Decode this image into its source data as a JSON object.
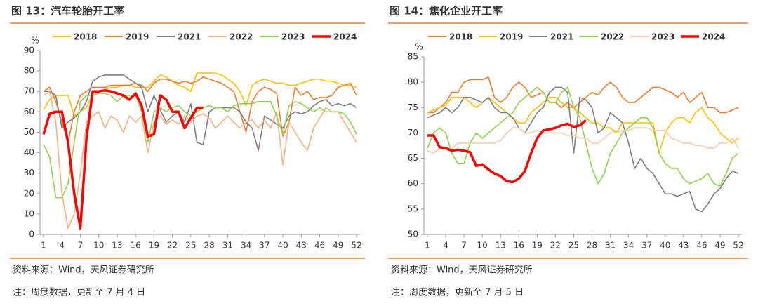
{
  "chart_data": [
    {
      "type": "line",
      "title": "图 13：汽车轮胎开工率",
      "source": "资料来源：Wind，天风证券研究所",
      "note": "注：周度数据，更新至 7 月 4 日",
      "y_unit": "%",
      "x": [
        1,
        2,
        3,
        4,
        5,
        6,
        7,
        8,
        9,
        10,
        11,
        12,
        13,
        14,
        15,
        16,
        17,
        18,
        19,
        20,
        21,
        22,
        23,
        24,
        25,
        26,
        27,
        28,
        29,
        30,
        31,
        32,
        33,
        34,
        35,
        36,
        37,
        38,
        39,
        40,
        41,
        42,
        43,
        44,
        45,
        46,
        47,
        48,
        49,
        50,
        51,
        52
      ],
      "xlim": [
        1,
        52
      ],
      "xticks": [
        1,
        4,
        7,
        10,
        13,
        16,
        19,
        22,
        25,
        28,
        31,
        34,
        37,
        40,
        43,
        46,
        49,
        52
      ],
      "ylim": [
        0,
        90
      ],
      "yticks": [
        0,
        10,
        20,
        30,
        40,
        50,
        60,
        70,
        80,
        90
      ],
      "legend": "top",
      "series": [
        {
          "name": "2018",
          "color": "#FFC000",
          "values": [
            61,
            66,
            68,
            68,
            68,
            58,
            60,
            62,
            69,
            70,
            71,
            72,
            72,
            73,
            73,
            72,
            72,
            72,
            75,
            78,
            77,
            75,
            73,
            72,
            70,
            79,
            79,
            79,
            79,
            78,
            76,
            74,
            70,
            63,
            73,
            75,
            76,
            75,
            74,
            74,
            73,
            73,
            74,
            75,
            76,
            76,
            75,
            75,
            74,
            73,
            73,
            72
          ]
        },
        {
          "name": "2019",
          "color": "#ED7D31",
          "values": [
            70,
            72,
            65,
            55,
            45,
            60,
            68,
            70,
            72,
            72,
            72,
            73,
            73,
            73,
            73,
            74,
            73,
            70,
            74,
            76,
            76,
            75,
            74,
            75,
            74,
            75,
            77,
            76,
            75,
            74,
            72,
            70,
            60,
            50,
            65,
            70,
            72,
            71,
            69,
            48,
            55,
            72,
            68,
            70,
            66,
            67,
            67,
            68,
            72,
            73,
            74,
            68
          ]
        },
        {
          "name": "2021",
          "color": "#7F7F7F",
          "values": [
            70,
            70,
            68,
            52,
            55,
            57,
            60,
            65,
            75,
            77,
            78,
            78,
            78,
            78,
            76,
            74,
            72,
            60,
            68,
            61,
            55,
            58,
            60,
            55,
            64,
            45,
            44,
            60,
            62,
            62,
            62,
            62,
            60,
            55,
            52,
            41,
            58,
            56,
            54,
            52,
            58,
            60,
            59,
            60,
            63,
            65,
            66,
            63,
            64,
            63,
            64,
            62
          ]
        },
        {
          "name": "2022",
          "color": "#F4B183",
          "values": [
            68,
            70,
            55,
            20,
            3,
            10,
            30,
            55,
            58,
            60,
            52,
            58,
            56,
            50,
            58,
            55,
            58,
            40,
            55,
            58,
            54,
            56,
            54,
            58,
            55,
            58,
            59,
            57,
            52,
            55,
            58,
            55,
            52,
            55,
            56,
            52,
            56,
            52,
            60,
            34,
            55,
            50,
            45,
            41,
            52,
            57,
            62,
            60,
            60,
            55,
            50,
            45
          ]
        },
        {
          "name": "2023",
          "color": "#92D050",
          "values": [
            44,
            38,
            18,
            18,
            25,
            45,
            65,
            68,
            68,
            69,
            69,
            68,
            65,
            68,
            68,
            68,
            60,
            45,
            60,
            62,
            60,
            62,
            63,
            60,
            58,
            60,
            62,
            63,
            62,
            62,
            60,
            63,
            64,
            64,
            64,
            65,
            65,
            65,
            58,
            49,
            63,
            65,
            64,
            62,
            60,
            62,
            60,
            60,
            60,
            59,
            55,
            49
          ]
        },
        {
          "name": "2024",
          "color": "#FF0000",
          "values": [
            49,
            59,
            60,
            60,
            45,
            20,
            3,
            47,
            70,
            70,
            70.5,
            70,
            69,
            68,
            66,
            69,
            63,
            48,
            49,
            68,
            66,
            60,
            60,
            52,
            57,
            62,
            62,
            null,
            null,
            null,
            null,
            null,
            null,
            null,
            null,
            null,
            null,
            null,
            null,
            null,
            null,
            null,
            null,
            null,
            null,
            null,
            null,
            null,
            null,
            null,
            null,
            null
          ]
        }
      ]
    },
    {
      "type": "line",
      "title": "图 14：焦化企业开工率",
      "source": "资料来源：Wind，天风证券研究所",
      "note": "注：周度数据，更新至 7 月 5 日",
      "y_unit": "%",
      "x": [
        1,
        2,
        3,
        4,
        5,
        6,
        7,
        8,
        9,
        10,
        11,
        12,
        13,
        14,
        15,
        16,
        17,
        18,
        19,
        20,
        21,
        22,
        23,
        24,
        25,
        26,
        27,
        28,
        29,
        30,
        31,
        32,
        33,
        34,
        35,
        36,
        37,
        38,
        39,
        40,
        41,
        42,
        43,
        44,
        45,
        46,
        47,
        48,
        49,
        50,
        51,
        52
      ],
      "xlim": [
        1,
        52
      ],
      "xticks": [
        1,
        4,
        7,
        10,
        13,
        16,
        19,
        22,
        25,
        28,
        31,
        34,
        37,
        40,
        43,
        46,
        49,
        52
      ],
      "ylim": [
        50,
        85
      ],
      "yticks": [
        50,
        55,
        60,
        65,
        70,
        75,
        80,
        85
      ],
      "legend": "top",
      "series": [
        {
          "name": "2018",
          "color": "#ED7D31",
          "values": [
            74,
            74,
            75,
            76,
            78,
            78,
            80,
            80.5,
            80.5,
            80.5,
            81,
            77,
            76,
            77,
            79,
            80,
            79,
            77,
            77.5,
            78,
            76,
            76,
            75,
            76,
            75,
            76,
            77,
            78,
            77.5,
            79,
            80,
            79,
            77,
            76,
            76,
            77,
            78,
            79,
            79,
            78.5,
            78,
            77,
            78,
            76,
            77,
            78,
            75,
            75,
            74,
            74,
            74.5,
            75
          ]
        },
        {
          "name": "2019",
          "color": "#FFC000",
          "values": [
            74,
            74.5,
            75,
            75.5,
            77,
            77,
            77,
            76,
            75,
            76,
            77,
            76,
            75,
            74,
            73,
            72,
            72,
            74,
            75,
            76,
            77,
            77,
            76,
            75,
            75,
            74,
            73,
            72,
            72,
            71,
            71,
            70,
            72,
            72,
            72,
            72,
            72,
            72,
            66,
            70,
            72,
            73,
            73,
            72,
            74,
            75,
            73,
            72,
            70,
            69,
            68,
            69
          ]
        },
        {
          "name": "2021",
          "color": "#7F7F7F",
          "values": [
            73,
            73.5,
            74,
            75,
            74,
            75,
            77,
            77,
            76.5,
            76,
            77,
            75,
            74,
            74,
            73,
            71,
            70,
            72,
            74,
            75,
            78,
            79,
            79,
            78,
            66,
            77,
            76.5,
            75,
            70,
            71,
            74,
            73,
            72,
            68,
            63,
            65,
            63,
            62,
            60,
            58,
            58,
            57.5,
            58,
            58.5,
            55,
            54.5,
            56,
            58,
            59,
            61,
            62.5,
            62
          ]
        },
        {
          "name": "2022",
          "color": "#92D050",
          "values": [
            67,
            70,
            71,
            70,
            66,
            64,
            64,
            68,
            70,
            69,
            70,
            71,
            72,
            73,
            74,
            76,
            77,
            78,
            79,
            78,
            76,
            76,
            78,
            79,
            75,
            73,
            68,
            63,
            60,
            62,
            66,
            68,
            70,
            71,
            72,
            73,
            73,
            71,
            66,
            64,
            63,
            63,
            61,
            60,
            60.5,
            61,
            62,
            60,
            59.5,
            62,
            65,
            66
          ]
        },
        {
          "name": "2023",
          "color": "#F8CBAD",
          "values": [
            66.5,
            66,
            67,
            67,
            67,
            68,
            68,
            68,
            68,
            68,
            68,
            68,
            68.5,
            70,
            71,
            71,
            70,
            70,
            70.5,
            70,
            70,
            70,
            70,
            69.5,
            69.5,
            69,
            69,
            68,
            68,
            69,
            70,
            70,
            70.5,
            70.5,
            71,
            71,
            71,
            70.5,
            70.5,
            70.5,
            69,
            68.5,
            68,
            68,
            67.5,
            67.5,
            67,
            67,
            68,
            68,
            69,
            67
          ]
        },
        {
          "name": "2024",
          "color": "#FF0000",
          "values": [
            69.5,
            69.5,
            67.2,
            67,
            66.5,
            66.7,
            66.5,
            66.2,
            63.5,
            63.8,
            62.8,
            62,
            61.5,
            60.5,
            60.3,
            61,
            62.5,
            66,
            69,
            70.5,
            70.7,
            71,
            71.5,
            71.8,
            71.2,
            71.5,
            72.5,
            null,
            null,
            null,
            null,
            null,
            null,
            null,
            null,
            null,
            null,
            null,
            null,
            null,
            null,
            null,
            null,
            null,
            null,
            null,
            null,
            null,
            null,
            null,
            null,
            null
          ]
        }
      ]
    }
  ]
}
